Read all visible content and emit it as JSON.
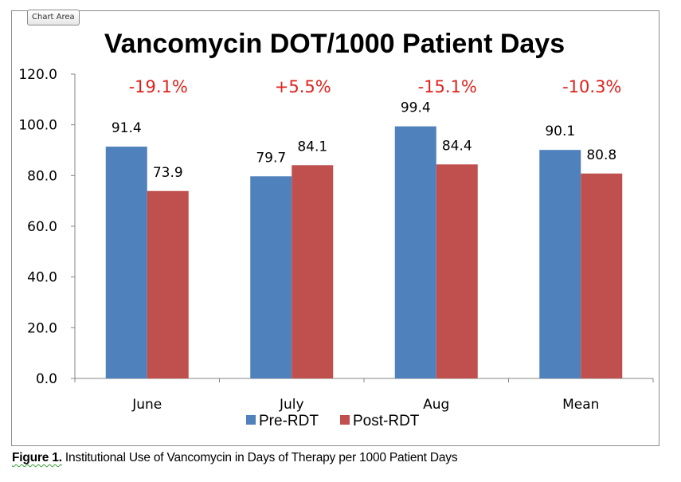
{
  "chart_area_label": "Chart Area",
  "caption": {
    "figure_label": "Figure 1.",
    "text": " Institutional Use of Vancomycin in Days of Therapy per 1000 Patient Days"
  },
  "chart_data": {
    "type": "bar",
    "title": "Vancomycin DOT/1000 Patient Days",
    "xlabel": "",
    "ylabel": "",
    "categories": [
      "June",
      "July",
      "Aug",
      "Mean"
    ],
    "series": [
      {
        "name": "Pre-RDT",
        "color": "#4f81bd",
        "values": [
          91.4,
          79.7,
          99.4,
          90.1
        ],
        "labels": [
          "91.4",
          "79.7",
          "99.4",
          "90.1"
        ]
      },
      {
        "name": "Post-RDT",
        "color": "#c0504d",
        "values": [
          73.9,
          84.1,
          84.4,
          80.8
        ],
        "labels": [
          "73.9",
          "84.1",
          "84.4",
          "80.8"
        ]
      }
    ],
    "annotations": [
      "-19.1%",
      "+5.5%",
      "-15.1%",
      "-10.3%"
    ],
    "annotation_color": "#e0201b",
    "ylim": [
      0,
      120
    ],
    "yticks": [
      0,
      20,
      40,
      60,
      80,
      100,
      120
    ],
    "ytick_labels": [
      "0.0",
      "20.0",
      "40.0",
      "60.0",
      "80.0",
      "100.0",
      "120.0"
    ],
    "grid": false,
    "legend": {
      "position": "bottom",
      "entries": [
        "Pre-RDT",
        "Post-RDT"
      ]
    }
  }
}
